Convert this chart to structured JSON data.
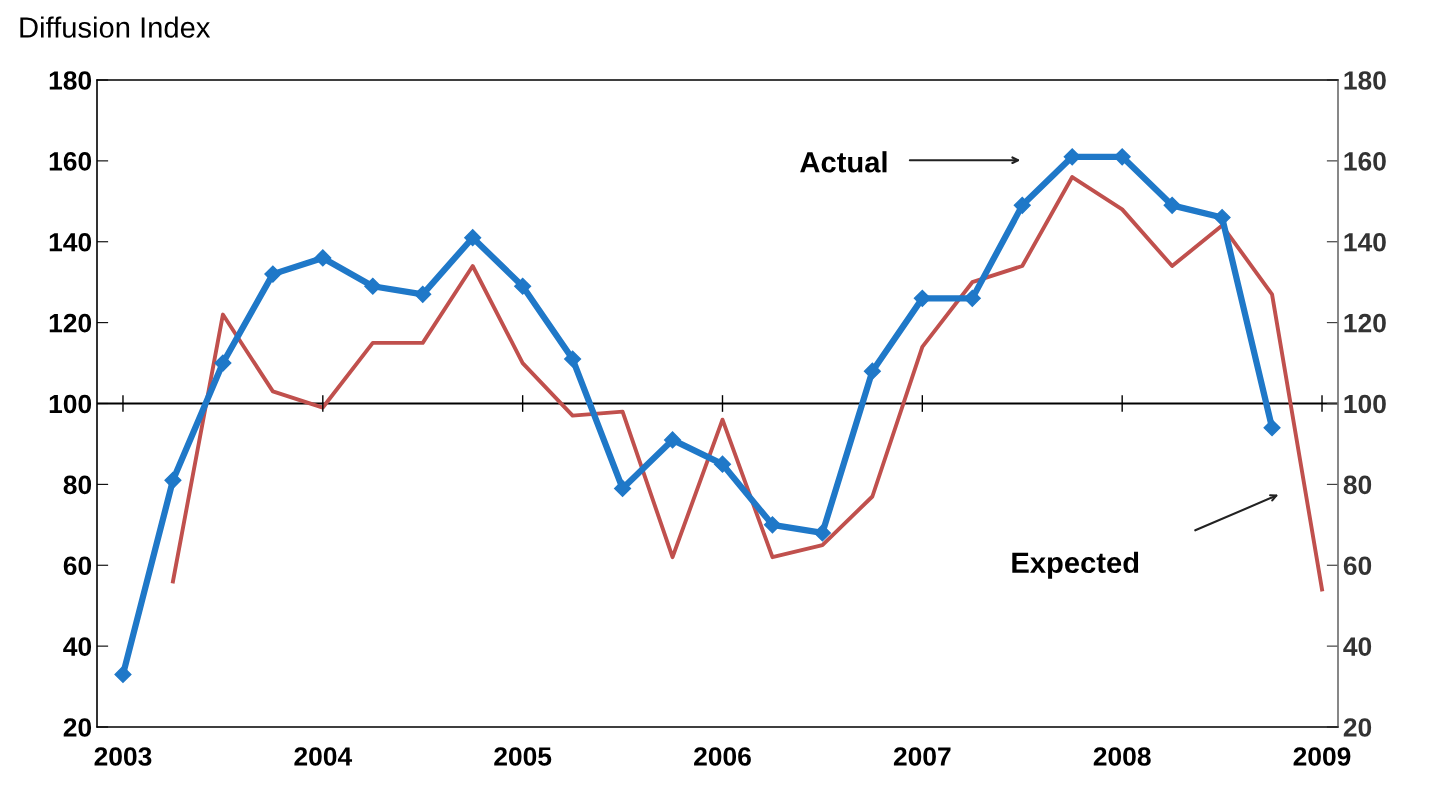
{
  "chart_data": {
    "type": "line",
    "ylabel": "Diffusion Index",
    "xlim": [
      2002.87,
      2009.08
    ],
    "xticks": [
      2003,
      2004,
      2005,
      2006,
      2007,
      2008,
      2009
    ],
    "ylim": [
      20,
      180
    ],
    "yticks": [
      20,
      40,
      60,
      80,
      100,
      120,
      140,
      160,
      180
    ],
    "y2lim": [
      20,
      180
    ],
    "y2ticks": [
      20,
      40,
      60,
      80,
      100,
      120,
      140,
      160,
      180
    ],
    "grid": false,
    "legend": false,
    "series": [
      {
        "color": "#1f78c8",
        "marker": "diamond",
        "x": [
          2003.0,
          2003.25,
          2003.5,
          2003.75,
          2004.0,
          2004.25,
          2004.5,
          2004.75,
          2005.0,
          2005.25,
          2005.5,
          2005.75,
          2006.0,
          2006.25,
          2006.5,
          2006.75,
          2007.0,
          2007.25,
          2007.5,
          2007.75,
          2008.0,
          2008.25,
          2008.5,
          2008.75
        ],
        "values": [
          33,
          81,
          110,
          132,
          136,
          129,
          127,
          141,
          129,
          111,
          79,
          91,
          85,
          70,
          68,
          108,
          126,
          126,
          149,
          161,
          161,
          149,
          146,
          94
        ]
      },
      {
        "color": "#c0504d",
        "marker": "none",
        "x": [
          2003.25,
          2003.5,
          2003.75,
          2004.0,
          2004.25,
          2004.5,
          2004.75,
          2005.0,
          2005.25,
          2005.5,
          2005.75,
          2006.0,
          2006.25,
          2006.5,
          2006.75,
          2007.0,
          2007.25,
          2007.5,
          2007.75,
          2008.0,
          2008.25,
          2008.5,
          2008.75,
          2009.0
        ],
        "values": [
          56,
          122,
          103,
          99,
          115,
          115,
          134,
          110,
          97,
          98,
          62,
          96,
          62,
          65,
          77,
          114,
          130,
          134,
          156,
          148,
          134,
          144,
          127,
          54
        ]
      }
    ],
    "ref_lines": [
      {
        "axis": "y",
        "value": 100,
        "color": "#000000"
      }
    ],
    "annotations": [
      "Actual",
      "Expected"
    ]
  }
}
